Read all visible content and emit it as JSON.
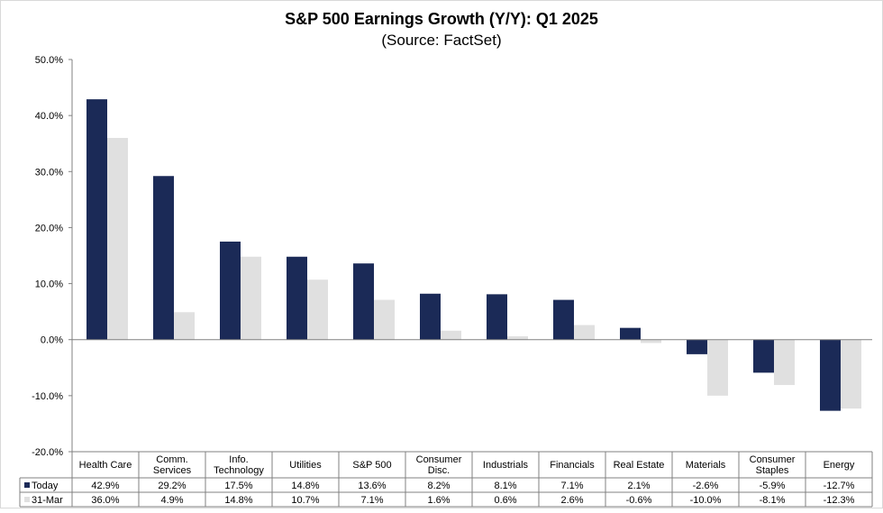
{
  "chart_data": {
    "type": "bar",
    "title": "S&P 500 Earnings Growth (Y/Y): Q1 2025",
    "subtitle": "(Source: FactSet)",
    "xlabel": "",
    "ylabel": "",
    "ylim": [
      -20,
      50
    ],
    "yticks": [
      "50.0%",
      "40.0%",
      "30.0%",
      "20.0%",
      "10.0%",
      "0.0%",
      "-10.0%",
      "-20.0%"
    ],
    "ytick_values": [
      50,
      40,
      30,
      20,
      10,
      0,
      -10,
      -20
    ],
    "grid": false,
    "legend_placement": "bottom-table",
    "categories": [
      [
        "Health Care"
      ],
      [
        "Comm.",
        "Services"
      ],
      [
        "Info.",
        "Technology"
      ],
      [
        "Utilities"
      ],
      [
        "S&P 500"
      ],
      [
        "Consumer",
        "Disc."
      ],
      [
        "Industrials"
      ],
      [
        "Financials"
      ],
      [
        "Real Estate"
      ],
      [
        "Materials"
      ],
      [
        "Consumer",
        "Staples"
      ],
      [
        "Energy"
      ]
    ],
    "series": [
      {
        "name": "Today",
        "color": "#1b2a57",
        "values": [
          42.9,
          29.2,
          17.5,
          14.8,
          13.6,
          8.2,
          8.1,
          7.1,
          2.1,
          -2.6,
          -5.9,
          -12.7
        ],
        "labels": [
          "42.9%",
          "29.2%",
          "17.5%",
          "14.8%",
          "13.6%",
          "8.2%",
          "8.1%",
          "7.1%",
          "2.1%",
          "-2.6%",
          "-5.9%",
          "-12.7%"
        ]
      },
      {
        "name": "31-Mar",
        "color": "#e0e0e0",
        "values": [
          36.0,
          4.9,
          14.8,
          10.7,
          7.1,
          1.6,
          0.6,
          2.6,
          -0.6,
          -10.0,
          -8.1,
          -12.3
        ],
        "labels": [
          "36.0%",
          "4.9%",
          "14.8%",
          "10.7%",
          "7.1%",
          "1.6%",
          "0.6%",
          "2.6%",
          "-0.6%",
          "-10.0%",
          "-8.1%",
          "-12.3%"
        ]
      }
    ]
  }
}
